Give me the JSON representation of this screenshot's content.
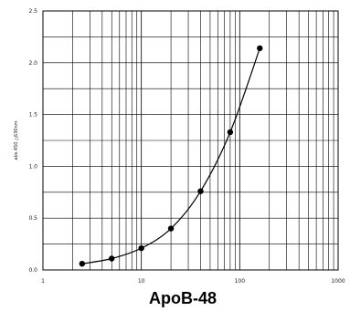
{
  "chart_data": {
    "type": "line",
    "title": "ApoB-48",
    "xlabel": "",
    "ylabel": "abs.450 △630nm",
    "x_scale": "log",
    "xlim": [
      1,
      1000
    ],
    "ylim": [
      0,
      2.5
    ],
    "x_ticks": [
      "1",
      "10",
      "100",
      "1000"
    ],
    "y_ticks": [
      "0.0",
      "0.5",
      "1.0",
      "1.5",
      "2.0",
      "2.5"
    ],
    "grid": true,
    "legend": "none",
    "series": [
      {
        "x": [
          2.5,
          5,
          10,
          20,
          40,
          80,
          160
        ],
        "values": [
          0.06,
          0.11,
          0.21,
          0.4,
          0.76,
          1.33,
          2.14
        ]
      }
    ],
    "colors": {
      "line": "#000000",
      "marker": "#000000",
      "grid": "#000000"
    }
  }
}
